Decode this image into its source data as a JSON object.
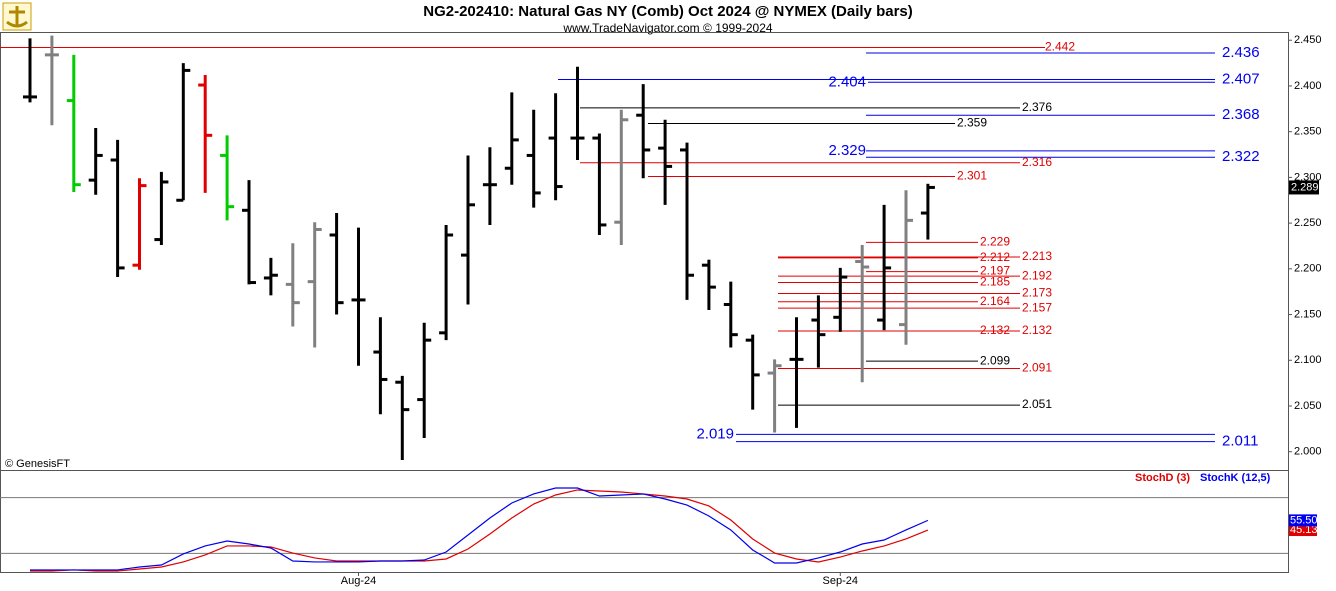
{
  "chart_data": [
    {
      "type": "ohlc",
      "title": "NG2-202410:  Natural Gas NY (Comb) Oct 2024 @ NYMEX  (Daily bars)",
      "subtitle": "www.TradeNavigator.com © 1999-2024",
      "watermark": "© GenesisFT",
      "categories": [
        null,
        null,
        null,
        null,
        null,
        null,
        null,
        null,
        null,
        null,
        null,
        null,
        null,
        null,
        null,
        "Aug-24",
        null,
        null,
        null,
        null,
        null,
        null,
        null,
        null,
        null,
        null,
        null,
        null,
        null,
        null,
        null,
        null,
        null,
        null,
        null,
        null,
        null,
        "Sep-24",
        null,
        null,
        null,
        null
      ],
      "open": [
        2.388,
        2.434,
        2.384,
        2.297,
        2.319,
        2.204,
        2.232,
        2.275,
        2.401,
        2.324,
        2.264,
        2.19,
        2.183,
        2.186,
        2.237,
        2.166,
        2.109,
        2.076,
        2.057,
        2.13,
        2.215,
        2.292,
        2.31,
        2.324,
        2.343,
        2.343,
        2.343,
        2.251,
        2.368,
        2.332,
        2.33,
        2.204,
        2.161,
        2.122,
        2.086,
        2.101,
        2.144,
        2.147,
        2.208,
        2.144,
        2.139,
        2.261
      ],
      "high": [
        2.452,
        2.455,
        2.434,
        2.354,
        2.341,
        2.299,
        2.306,
        2.425,
        2.412,
        2.346,
        2.297,
        2.212,
        2.228,
        2.251,
        2.261,
        2.245,
        2.147,
        2.083,
        2.141,
        2.248,
        2.324,
        2.333,
        2.393,
        2.374,
        2.392,
        2.421,
        2.348,
        2.374,
        2.402,
        2.363,
        2.338,
        2.21,
        2.186,
        2.128,
        2.101,
        2.147,
        2.171,
        2.201,
        2.226,
        2.27,
        2.286,
        2.293
      ],
      "low": [
        2.382,
        2.357,
        2.284,
        2.281,
        2.191,
        2.199,
        2.226,
        2.275,
        2.283,
        2.253,
        2.183,
        2.171,
        2.137,
        2.114,
        2.15,
        2.094,
        2.041,
        1.991,
        2.015,
        2.122,
        2.161,
        2.248,
        2.292,
        2.267,
        2.275,
        2.319,
        2.237,
        2.226,
        2.299,
        2.27,
        2.166,
        2.155,
        2.114,
        2.046,
        2.021,
        2.026,
        2.092,
        2.131,
        2.076,
        2.133,
        2.117,
        2.232
      ],
      "close": [
        2.388,
        2.434,
        2.292,
        2.324,
        2.201,
        2.291,
        2.295,
        2.417,
        2.346,
        2.268,
        2.185,
        2.193,
        2.163,
        2.243,
        2.163,
        2.166,
        2.079,
        2.046,
        2.122,
        2.237,
        2.27,
        2.292,
        2.341,
        2.283,
        2.29,
        2.343,
        2.248,
        2.363,
        2.33,
        2.312,
        2.193,
        2.18,
        2.128,
        2.084,
        2.094,
        2.101,
        2.128,
        2.191,
        2.202,
        2.201,
        2.253,
        2.289
      ],
      "colors": [
        "#000000",
        "#808080",
        "#00cc00",
        "#000000",
        "#000000",
        "#e00000",
        "#000000",
        "#000000",
        "#e00000",
        "#00cc00",
        "#000000",
        "#000000",
        "#808080",
        "#808080",
        "#000000",
        "#000000",
        "#000000",
        "#000000",
        "#000000",
        "#000000",
        "#000000",
        "#000000",
        "#000000",
        "#000000",
        "#000000",
        "#000000",
        "#000000",
        "#808080",
        "#000000",
        "#000000",
        "#000000",
        "#000000",
        "#000000",
        "#000000",
        "#808080",
        "#000000",
        "#000000",
        "#000000",
        "#808080",
        "#000000",
        "#808080",
        "#000000"
      ],
      "ylim": [
        1.98,
        2.459
      ],
      "yticks": [
        {
          "value": 2.0,
          "label": "2.000"
        },
        {
          "value": 2.05,
          "label": "2.050"
        },
        {
          "value": 2.1,
          "label": "2.100"
        },
        {
          "value": 2.15,
          "label": "2.150"
        },
        {
          "value": 2.2,
          "label": "2.200"
        },
        {
          "value": 2.25,
          "label": "2.250"
        },
        {
          "value": 2.3,
          "label": "2.300"
        },
        {
          "value": 2.35,
          "label": "2.350"
        },
        {
          "value": 2.4,
          "label": "2.400"
        },
        {
          "value": 2.45,
          "label": "2.450"
        }
      ],
      "levels": [
        {
          "value": 2.442,
          "color": "#e00000"
        },
        {
          "value": 2.436,
          "color": "#0000ee"
        },
        {
          "value": 2.407,
          "color": "#0000ee"
        },
        {
          "value": 2.404,
          "color": "#0000ee"
        },
        {
          "value": 2.376,
          "color": "#000000"
        },
        {
          "value": 2.368,
          "color": "#0000ee"
        },
        {
          "value": 2.359,
          "color": "#000000"
        },
        {
          "value": 2.329,
          "color": "#0000ee"
        },
        {
          "value": 2.322,
          "color": "#0000ee"
        },
        {
          "value": 2.316,
          "color": "#e00000"
        },
        {
          "value": 2.301,
          "color": "#e00000"
        },
        {
          "value": 2.229,
          "color": "#e00000"
        },
        {
          "value": 2.213,
          "color": "#e00000"
        },
        {
          "value": 2.212,
          "color": "#e00000"
        },
        {
          "value": 2.197,
          "color": "#e00000"
        },
        {
          "value": 2.192,
          "color": "#e00000"
        },
        {
          "value": 2.185,
          "color": "#e00000"
        },
        {
          "value": 2.173,
          "color": "#e00000"
        },
        {
          "value": 2.164,
          "color": "#e00000"
        },
        {
          "value": 2.157,
          "color": "#e00000"
        },
        {
          "value": 2.132,
          "color": "#e00000"
        },
        {
          "value": 2.132,
          "color": "#e00000"
        },
        {
          "value": 2.099,
          "color": "#000000"
        },
        {
          "value": 2.091,
          "color": "#e00000"
        },
        {
          "value": 2.051,
          "color": "#000000"
        },
        {
          "value": 2.019,
          "color": "#0000ee"
        },
        {
          "value": 2.011,
          "color": "#0000ee"
        }
      ]
    },
    {
      "type": "line",
      "series": [
        {
          "name": "StochD (3)",
          "color": "#e00000",
          "values": [
            1.1,
            1.1,
            2.2,
            1.1,
            1.1,
            3.2,
            5.4,
            10.8,
            18.3,
            28,
            28,
            26.9,
            20.4,
            15.1,
            11.8,
            11.8,
            11.8,
            11.8,
            11.8,
            14,
            24.7,
            40.9,
            58.1,
            73.1,
            82.8,
            88.2,
            87.1,
            86,
            83.9,
            81.7,
            78.5,
            71,
            55.9,
            35.5,
            20.4,
            14,
            10.8,
            16.1,
            22.6,
            28,
            35.5,
            45.13
          ],
          "value_labels": [
            null,
            null,
            null,
            null,
            null,
            null,
            null,
            null,
            null,
            null,
            null,
            null,
            null,
            null,
            null,
            null,
            null,
            null,
            null,
            null,
            null,
            null,
            null,
            null,
            null,
            null,
            null,
            null,
            null,
            null,
            null,
            null,
            null,
            null,
            null,
            null,
            null,
            null,
            null,
            null,
            null,
            "45.13"
          ]
        },
        {
          "name": "StochK (12,5)",
          "color": "#0000ee",
          "values": [
            2.2,
            2.2,
            2.2,
            2.2,
            2.2,
            5.4,
            7.5,
            19.4,
            28,
            33.3,
            30.1,
            25.8,
            11.8,
            10.8,
            10.8,
            10.8,
            11.8,
            11.8,
            12.9,
            21.5,
            39.8,
            58.1,
            74.2,
            83.9,
            90.3,
            90.3,
            81.7,
            82.8,
            83.9,
            78.5,
            72,
            60.2,
            45.2,
            23.7,
            9.7,
            9.7,
            15.1,
            21.5,
            30.1,
            34.4,
            45.2,
            55.5
          ],
          "value_labels": [
            null,
            null,
            null,
            null,
            null,
            null,
            null,
            null,
            null,
            null,
            null,
            null,
            null,
            null,
            null,
            null,
            null,
            null,
            null,
            null,
            null,
            null,
            null,
            null,
            null,
            null,
            null,
            null,
            null,
            null,
            null,
            null,
            null,
            null,
            null,
            null,
            null,
            null,
            null,
            null,
            null,
            "55.50"
          ]
        }
      ],
      "ylim": [
        0,
        100
      ],
      "hlines": [
        20,
        80
      ]
    }
  ]
}
